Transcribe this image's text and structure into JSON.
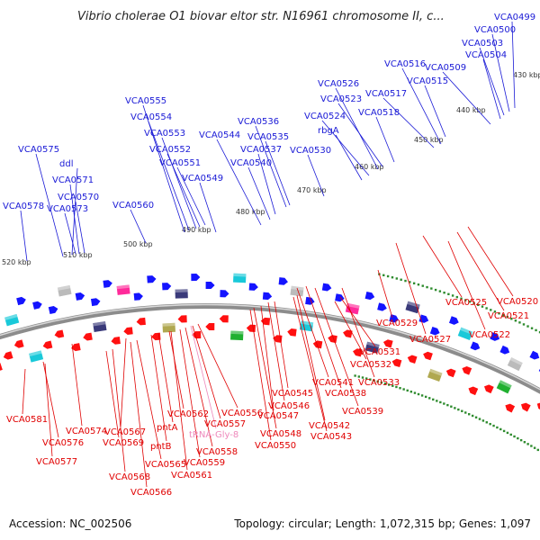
{
  "title": "Vibrio cholerae O1 biovar eltor str. N16961 chromosome II, c...",
  "footer": {
    "accession": "Accession: NC_002506",
    "summary": "Topology: circular; Length: 1,072,315 bp; Genes: 1,097"
  },
  "colors": {
    "forward_label": "#1a1ad6",
    "reverse_label": "#e00000",
    "trna_label": "#ee88bb",
    "backbone": "#8c8c8c",
    "tick_dot": "#2e8b2e"
  },
  "scale": {
    "unit": "kbp",
    "ticks": [
      {
        "label": "430 kbp"
      },
      {
        "label": "440 kbp"
      },
      {
        "label": "450 kbp"
      },
      {
        "label": "460 kbp"
      },
      {
        "label": "470 kbp"
      },
      {
        "label": "480 kbp"
      },
      {
        "label": "490 kbp"
      },
      {
        "label": "500 kbp"
      },
      {
        "label": "510 kbp"
      },
      {
        "label": "520 kbp"
      }
    ]
  },
  "forward_labels": [
    "VCA0499",
    "VCA0500",
    "VCA0503",
    "VCA0504",
    "VCA0509",
    "VCA0516",
    "VCA0515",
    "VCA0517",
    "VCA0526",
    "VCA0523",
    "VCA0518",
    "VCA0524",
    "rbgA",
    "VCA0536",
    "VCA0535",
    "VCA0544",
    "VCA0537",
    "VCA0530",
    "VCA0540",
    "VCA0555",
    "VCA0554",
    "VCA0553",
    "VCA0552",
    "VCA0551",
    "VCA0549",
    "VCA0560",
    "VCA0575",
    "ddl",
    "VCA0571",
    "VCA0570",
    "VCA0578",
    "VCA0573"
  ],
  "reverse_labels": [
    "VCA0520",
    "VCA0521",
    "VCA0525",
    "VCA0522",
    "VCA0529",
    "VCA0527",
    "VCA0531",
    "VCA0532",
    "VCA0533",
    "VCA0541",
    "VCA0538",
    "VCA0545",
    "VCA0539",
    "VCA0546",
    "VCA0542",
    "VCA0547",
    "VCA0543",
    "VCA0548",
    "VCA0550",
    "VCA0556",
    "VCA0562",
    "VCA0557",
    "pntA",
    "VCA0574",
    "VCA0567",
    "VCA0558",
    "VCA0581",
    "VCA0576",
    "VCA0569",
    "pntB",
    "VCA0565",
    "VCA0559",
    "VCA0561",
    "VCA0577",
    "VCA0568",
    "VCA0566"
  ],
  "trna_labels": [
    "tRNA-Gly-8"
  ]
}
